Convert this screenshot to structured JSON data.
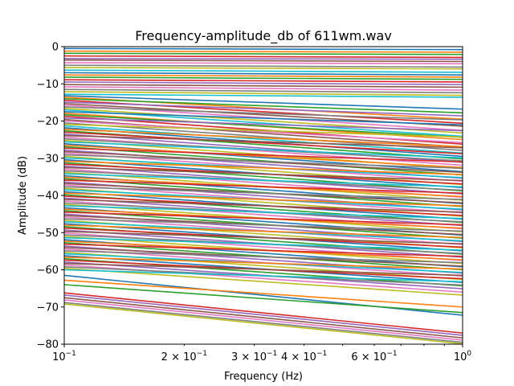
{
  "chart_data": {
    "type": "line",
    "title": "Frequency-amplitude_db of 611wm.wav",
    "xlabel": "Frequency (Hz)",
    "ylabel": "Amplitude (dB)",
    "xscale": "log",
    "xlim": [
      0.1,
      1.0
    ],
    "ylim": [
      -80,
      0
    ],
    "grid": false,
    "legend": "none",
    "x": [
      0.1,
      1.0
    ],
    "x_tick_labels": [
      {
        "value": 0.1,
        "base": "10",
        "exp": "−1"
      },
      {
        "value": 0.2,
        "base": "2 × 10",
        "exp": "−1"
      },
      {
        "value": 0.3,
        "base": "3 × 10",
        "exp": "−1"
      },
      {
        "value": 0.4,
        "base": "4 × 10",
        "exp": "−1"
      },
      {
        "value": 0.6,
        "base": "6 × 10",
        "exp": "−1"
      },
      {
        "value": 1.0,
        "base": "10",
        "exp": "0"
      }
    ],
    "y_ticks": [
      0,
      -10,
      -20,
      -30,
      -40,
      -50,
      -60,
      -70,
      -80
    ],
    "y_tick_labels": [
      "0",
      "−10",
      "−20",
      "−30",
      "−40",
      "−50",
      "−60",
      "−70",
      "−80"
    ],
    "palette": [
      "#1f77b4",
      "#ff7f0e",
      "#2ca02c",
      "#d62728",
      "#9467bd",
      "#8c564b",
      "#e377c2",
      "#7f7f7f",
      "#bcbd22",
      "#17becf"
    ],
    "series": [
      {
        "values": [
          -0.5,
          -0.8
        ]
      },
      {
        "values": [
          -1.2,
          -1.5
        ]
      },
      {
        "values": [
          -1.8,
          -2.1
        ]
      },
      {
        "values": [
          -2.5,
          -2.9
        ]
      },
      {
        "values": [
          -3.2,
          -3.4
        ]
      },
      {
        "values": [
          -3.6,
          -4.0
        ]
      },
      {
        "values": [
          -4.3,
          -4.6
        ]
      },
      {
        "values": [
          -5.0,
          -5.5
        ]
      },
      {
        "values": [
          -5.6,
          -6.0
        ]
      },
      {
        "values": [
          -6.3,
          -6.9
        ]
      },
      {
        "values": [
          -7.0,
          -7.6
        ]
      },
      {
        "values": [
          -7.6,
          -8.2
        ]
      },
      {
        "values": [
          -8.2,
          -8.8
        ]
      },
      {
        "values": [
          -8.9,
          -9.5
        ]
      },
      {
        "values": [
          -9.5,
          -10.2
        ]
      },
      {
        "values": [
          -10.2,
          -10.9
        ]
      },
      {
        "values": [
          -10.8,
          -11.7
        ]
      },
      {
        "values": [
          -11.5,
          -12.4
        ]
      },
      {
        "values": [
          -12.1,
          -13.1
        ]
      },
      {
        "values": [
          -12.8,
          -13.6
        ]
      },
      {
        "values": [
          -13.2,
          -16.8
        ]
      },
      {
        "values": [
          -13.6,
          -19.5
        ]
      },
      {
        "values": [
          -14.0,
          -17.8
        ]
      },
      {
        "values": [
          -14.4,
          -20.6
        ]
      },
      {
        "values": [
          -14.9,
          -18.6
        ]
      },
      {
        "values": [
          -15.3,
          -21.4
        ]
      },
      {
        "values": [
          -15.7,
          -22.5
        ]
      },
      {
        "values": [
          -16.2,
          -19.7
        ]
      },
      {
        "values": [
          -16.6,
          -23.2
        ]
      },
      {
        "values": [
          -17.0,
          -24.1
        ]
      },
      {
        "values": [
          -17.5,
          -21.0
        ]
      },
      {
        "values": [
          -17.9,
          -25.0
        ]
      },
      {
        "values": [
          -18.3,
          -24.4
        ]
      },
      {
        "values": [
          -18.7,
          -26.2
        ]
      },
      {
        "values": [
          -19.2,
          -22.6
        ]
      },
      {
        "values": [
          -19.6,
          -27.0
        ]
      },
      {
        "values": [
          -20.0,
          -25.8
        ]
      },
      {
        "values": [
          -20.5,
          -27.9
        ]
      },
      {
        "values": [
          -20.9,
          -24.3
        ]
      },
      {
        "values": [
          -21.3,
          -28.6
        ]
      },
      {
        "values": [
          -21.8,
          -29.5
        ]
      },
      {
        "values": [
          -22.2,
          -26.9
        ]
      },
      {
        "values": [
          -22.6,
          -30.2
        ]
      },
      {
        "values": [
          -23.0,
          -28.8
        ]
      },
      {
        "values": [
          -23.5,
          -31.1
        ]
      },
      {
        "values": [
          -23.9,
          -27.2
        ]
      },
      {
        "values": [
          -24.3,
          -31.9
        ]
      },
      {
        "values": [
          -24.8,
          -30.7
        ]
      },
      {
        "values": [
          -25.2,
          -32.8
        ]
      },
      {
        "values": [
          -25.6,
          -29.9
        ]
      },
      {
        "values": [
          -26.1,
          -33.6
        ]
      },
      {
        "values": [
          -26.5,
          -32.5
        ]
      },
      {
        "values": [
          -26.9,
          -34.5
        ]
      },
      {
        "values": [
          -27.3,
          -31.0
        ]
      },
      {
        "values": [
          -27.8,
          -35.4
        ]
      },
      {
        "values": [
          -28.2,
          -33.8
        ]
      },
      {
        "values": [
          -28.6,
          -36.2
        ]
      },
      {
        "values": [
          -29.1,
          -32.7
        ]
      },
      {
        "values": [
          -29.5,
          -37.1
        ]
      },
      {
        "values": [
          -29.9,
          -35.2
        ]
      },
      {
        "values": [
          -30.4,
          -37.9
        ]
      },
      {
        "values": [
          -30.8,
          -34.4
        ]
      },
      {
        "values": [
          -31.2,
          -38.8
        ]
      },
      {
        "values": [
          -31.6,
          -36.9
        ]
      },
      {
        "values": [
          -32.1,
          -39.6
        ]
      },
      {
        "values": [
          -32.5,
          -36.0
        ]
      },
      {
        "values": [
          -32.9,
          -40.5
        ]
      },
      {
        "values": [
          -33.4,
          -38.6
        ]
      },
      {
        "values": [
          -33.8,
          -41.3
        ]
      },
      {
        "values": [
          -34.2,
          -37.7
        ]
      },
      {
        "values": [
          -34.7,
          -42.2
        ]
      },
      {
        "values": [
          -35.1,
          -40.3
        ]
      },
      {
        "values": [
          -35.5,
          -43.0
        ]
      },
      {
        "values": [
          -35.9,
          -39.4
        ]
      },
      {
        "values": [
          -36.4,
          -43.9
        ]
      },
      {
        "values": [
          -36.8,
          -42.0
        ]
      },
      {
        "values": [
          -37.2,
          -44.7
        ]
      },
      {
        "values": [
          -37.7,
          -41.1
        ]
      },
      {
        "values": [
          -38.1,
          -45.6
        ]
      },
      {
        "values": [
          -38.5,
          -43.7
        ]
      },
      {
        "values": [
          -39.0,
          -46.4
        ]
      },
      {
        "values": [
          -39.4,
          -42.8
        ]
      },
      {
        "values": [
          -39.8,
          -47.3
        ]
      },
      {
        "values": [
          -40.2,
          -45.4
        ]
      },
      {
        "values": [
          -40.7,
          -48.1
        ]
      },
      {
        "values": [
          -41.1,
          -44.5
        ]
      },
      {
        "values": [
          -41.5,
          -49.0
        ]
      },
      {
        "values": [
          -42.0,
          -47.1
        ]
      },
      {
        "values": [
          -42.4,
          -49.8
        ]
      },
      {
        "values": [
          -42.8,
          -46.2
        ]
      },
      {
        "values": [
          -43.3,
          -50.7
        ]
      },
      {
        "values": [
          -43.7,
          -48.8
        ]
      },
      {
        "values": [
          -44.1,
          -51.5
        ]
      },
      {
        "values": [
          -44.5,
          -47.9
        ]
      },
      {
        "values": [
          -45.0,
          -52.4
        ]
      },
      {
        "values": [
          -45.4,
          -50.5
        ]
      },
      {
        "values": [
          -45.8,
          -53.2
        ]
      },
      {
        "values": [
          -46.3,
          -49.6
        ]
      },
      {
        "values": [
          -46.7,
          -54.1
        ]
      },
      {
        "values": [
          -47.1,
          -52.2
        ]
      },
      {
        "values": [
          -47.6,
          -54.9
        ]
      },
      {
        "values": [
          -48.0,
          -51.3
        ]
      },
      {
        "values": [
          -48.4,
          -55.8
        ]
      },
      {
        "values": [
          -48.8,
          -53.9
        ]
      },
      {
        "values": [
          -49.3,
          -56.6
        ]
      },
      {
        "values": [
          -49.7,
          -53.0
        ]
      },
      {
        "values": [
          -50.1,
          -57.5
        ]
      },
      {
        "values": [
          -50.6,
          -55.6
        ]
      },
      {
        "values": [
          -51.0,
          -58.3
        ]
      },
      {
        "values": [
          -51.4,
          -54.7
        ]
      },
      {
        "values": [
          -51.9,
          -59.2
        ]
      },
      {
        "values": [
          -52.3,
          -57.3
        ]
      },
      {
        "values": [
          -52.7,
          -60.0
        ]
      },
      {
        "values": [
          -53.1,
          -56.4
        ]
      },
      {
        "values": [
          -53.6,
          -60.9
        ]
      },
      {
        "values": [
          -54.0,
          -59.0
        ]
      },
      {
        "values": [
          -54.4,
          -61.7
        ]
      },
      {
        "values": [
          -54.9,
          -58.1
        ]
      },
      {
        "values": [
          -55.3,
          -62.6
        ]
      },
      {
        "values": [
          -55.7,
          -60.7
        ]
      },
      {
        "values": [
          -56.2,
          -63.4
        ]
      },
      {
        "values": [
          -56.6,
          -59.8
        ]
      },
      {
        "values": [
          -57.0,
          -64.3
        ]
      },
      {
        "values": [
          -57.4,
          -62.4
        ]
      },
      {
        "values": [
          -57.9,
          -65.1
        ]
      },
      {
        "values": [
          -58.3,
          -61.5
        ]
      },
      {
        "values": [
          -58.7,
          -66.0
        ]
      },
      {
        "values": [
          -59.2,
          -64.1
        ]
      },
      {
        "values": [
          -59.6,
          -66.8
        ]
      },
      {
        "values": [
          -60.0,
          -63.2
        ]
      },
      {
        "values": [
          -61.5,
          -72.2
        ]
      },
      {
        "values": [
          -62.8,
          -70.0
        ]
      },
      {
        "values": [
          -64.0,
          -71.5
        ]
      },
      {
        "values": [
          -66.2,
          -77.0
        ]
      },
      {
        "values": [
          -66.8,
          -77.6
        ]
      },
      {
        "values": [
          -67.5,
          -78.3
        ]
      },
      {
        "values": [
          -68.1,
          -78.9
        ]
      },
      {
        "values": [
          -68.8,
          -79.5
        ]
      },
      {
        "values": [
          -69.2,
          -79.9
        ]
      }
    ]
  }
}
